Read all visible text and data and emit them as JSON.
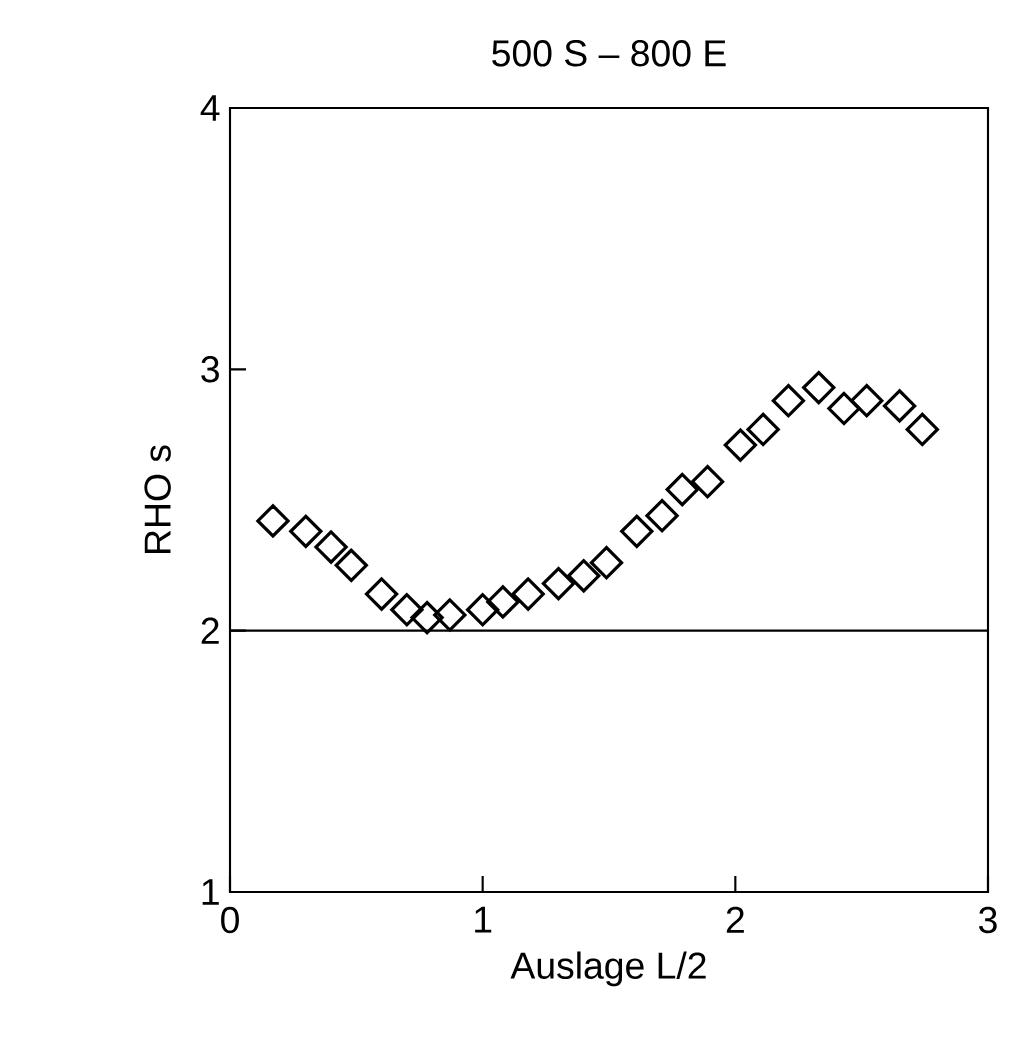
{
  "chart_data": {
    "type": "scatter",
    "title": "500 S – 800 E",
    "xlabel": "Auslage L/2",
    "ylabel": "RHO s",
    "xlim": [
      0,
      3
    ],
    "xticks": [
      0,
      1,
      2,
      3
    ],
    "ylim": [
      1,
      4
    ],
    "yticks": [
      1,
      2,
      3,
      4
    ],
    "grid": false,
    "marker": "diamond",
    "ref_lines": [
      {
        "axis": "y",
        "value": 2,
        "color": "#000000"
      }
    ],
    "series": [
      {
        "color": "#000000",
        "x": [
          0.17,
          0.3,
          0.4,
          0.48,
          0.6,
          0.7,
          0.78,
          0.87,
          1.0,
          1.08,
          1.18,
          1.3,
          1.4,
          1.49,
          1.61,
          1.71,
          1.79,
          1.89,
          2.02,
          2.11,
          2.21,
          2.33,
          2.43,
          2.52,
          2.65,
          2.74
        ],
        "values": [
          2.42,
          2.38,
          2.32,
          2.25,
          2.14,
          2.08,
          2.05,
          2.06,
          2.08,
          2.11,
          2.14,
          2.18,
          2.21,
          2.26,
          2.38,
          2.44,
          2.54,
          2.57,
          2.71,
          2.77,
          2.88,
          2.93,
          2.85,
          2.88,
          2.86,
          2.77
        ]
      }
    ]
  }
}
